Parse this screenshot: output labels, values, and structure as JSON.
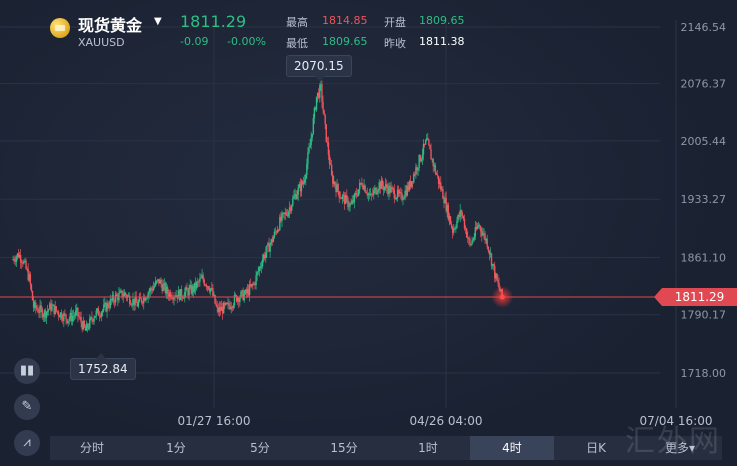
{
  "header": {
    "name": "现货黄金",
    "code": "XAUUSD",
    "price": "1811.29",
    "change": "-0.09",
    "change_pct": "-0.00%",
    "stats": [
      {
        "label": "最高",
        "value": "1814.85",
        "color": "#f0545c"
      },
      {
        "label": "开盘",
        "value": "1809.65",
        "color": "#2ebd85"
      },
      {
        "label": "最低",
        "value": "1809.65",
        "color": "#2ebd85"
      },
      {
        "label": "昨收",
        "value": "1811.38",
        "color": "#ffffff"
      }
    ]
  },
  "chart_data": {
    "type": "candlestick",
    "y_ticks": [
      "2146.54",
      "2076.37",
      "2005.44",
      "1933.27",
      "1861.10",
      "1790.17",
      "1718.00"
    ],
    "x_ticks": [
      "01/27 16:00",
      "04/26 04:00",
      "07/04 16:00"
    ],
    "ylim": [
      1718.0,
      2146.54
    ],
    "series_path": [
      [
        0,
        1858
      ],
      [
        3,
        1865
      ],
      [
        5,
        1858
      ],
      [
        8,
        1835
      ],
      [
        10,
        1800
      ],
      [
        15,
        1792
      ],
      [
        18,
        1800
      ],
      [
        22,
        1792
      ],
      [
        26,
        1785
      ],
      [
        30,
        1792
      ],
      [
        34,
        1770
      ],
      [
        38,
        1790
      ],
      [
        42,
        1796
      ],
      [
        48,
        1812
      ],
      [
        52,
        1816
      ],
      [
        58,
        1803
      ],
      [
        62,
        1815
      ],
      [
        68,
        1832
      ],
      [
        72,
        1817
      ],
      [
        78,
        1815
      ],
      [
        84,
        1822
      ],
      [
        88,
        1835
      ],
      [
        92,
        1823
      ],
      [
        95,
        1795
      ],
      [
        100,
        1800
      ],
      [
        104,
        1812
      ],
      [
        108,
        1815
      ],
      [
        112,
        1828
      ],
      [
        116,
        1860
      ],
      [
        120,
        1880
      ],
      [
        124,
        1905
      ],
      [
        128,
        1920
      ],
      [
        131,
        1938
      ],
      [
        135,
        1955
      ],
      [
        138,
        2000
      ],
      [
        141,
        2060
      ],
      [
        143,
        2070
      ],
      [
        145,
        2020
      ],
      [
        148,
        1960
      ],
      [
        152,
        1938
      ],
      [
        157,
        1925
      ],
      [
        162,
        1955
      ],
      [
        166,
        1935
      ],
      [
        170,
        1952
      ],
      [
        175,
        1945
      ],
      [
        180,
        1935
      ],
      [
        184,
        1950
      ],
      [
        188,
        1978
      ],
      [
        192,
        2005
      ],
      [
        196,
        1968
      ],
      [
        200,
        1935
      ],
      [
        204,
        1895
      ],
      [
        208,
        1918
      ],
      [
        212,
        1875
      ],
      [
        216,
        1902
      ],
      [
        220,
        1880
      ],
      [
        224,
        1835
      ],
      [
        227,
        1811
      ]
    ],
    "x_range": [
      0,
      300
    ],
    "current_price": "1811.29",
    "high": {
      "value": "2070.15",
      "x": 143
    },
    "low": {
      "value": "1752.84",
      "x": 34
    },
    "grid": true
  },
  "tools": [
    {
      "icon": "candle-style-icon",
      "glyph": "▮▮"
    },
    {
      "icon": "pen-icon",
      "glyph": "✎"
    },
    {
      "icon": "indicator-icon",
      "glyph": "⩘"
    }
  ],
  "periods": [
    {
      "label": "分时"
    },
    {
      "label": "1分"
    },
    {
      "label": "5分"
    },
    {
      "label": "15分"
    },
    {
      "label": "1时"
    },
    {
      "label": "4时",
      "active": true
    },
    {
      "label": "日K"
    },
    {
      "label": "更多▾"
    }
  ],
  "watermark": "汇外网",
  "colors": {
    "up": "#2ebd85",
    "down": "#f0545c",
    "bg": "#1c2333",
    "accent": "#e04852"
  }
}
